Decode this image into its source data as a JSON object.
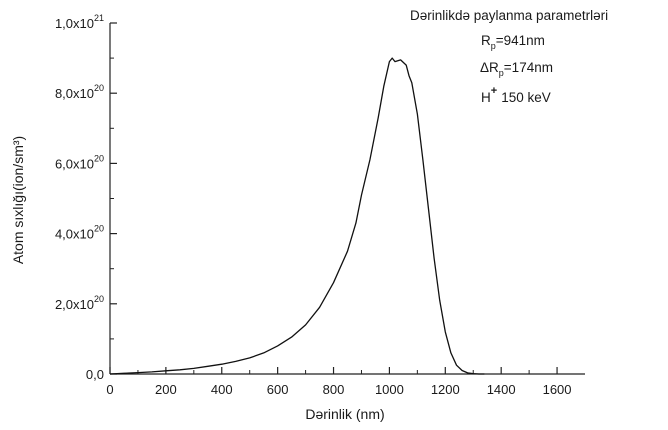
{
  "chart_data": {
    "type": "line",
    "title": "",
    "xlabel": "Dərinlik (nm)",
    "ylabel": "Atom sıxlığı(ion/sm³)",
    "xlim": [
      0,
      1700
    ],
    "ylim": [
      0,
      1e+21
    ],
    "grid": false,
    "x_ticks": [
      {
        "value": 0,
        "label": "0"
      },
      {
        "value": 200,
        "label": "200"
      },
      {
        "value": 400,
        "label": "400"
      },
      {
        "value": 600,
        "label": "600"
      },
      {
        "value": 800,
        "label": "800"
      },
      {
        "value": 1000,
        "label": "1000"
      },
      {
        "value": 1200,
        "label": "1200"
      },
      {
        "value": 1400,
        "label": "1400"
      },
      {
        "value": 1600,
        "label": "1600"
      }
    ],
    "y_ticks": [
      {
        "value": 0,
        "base": "0,0",
        "exp": ""
      },
      {
        "value": 2e+20,
        "base": "2,0x10",
        "exp": "20"
      },
      {
        "value": 4e+20,
        "base": "4,0x10",
        "exp": "20"
      },
      {
        "value": 6e+20,
        "base": "6,0x10",
        "exp": "20"
      },
      {
        "value": 8e+20,
        "base": "8,0x10",
        "exp": "20"
      },
      {
        "value": 1e+21,
        "base": "1,0x10",
        "exp": "21"
      }
    ],
    "series": [
      {
        "x": [
          0,
          50,
          100,
          150,
          200,
          250,
          300,
          350,
          400,
          450,
          500,
          550,
          600,
          650,
          700,
          750,
          800,
          850,
          880,
          900,
          930,
          960,
          980,
          1000,
          1010,
          1020,
          1040,
          1060,
          1070,
          1080,
          1100,
          1120,
          1140,
          1160,
          1180,
          1200,
          1220,
          1240,
          1260,
          1280,
          1300,
          1320,
          1340
        ],
        "y": [
          0,
          2e+18,
          4e+18,
          6e+18,
          9e+18,
          1.2e+19,
          1.6e+19,
          2.2e+19,
          2.8e+19,
          3.6e+19,
          4.6e+19,
          6e+19,
          8e+19,
          1.05e+20,
          1.4e+20,
          1.9e+20,
          2.6e+20,
          3.5e+20,
          4.3e+20,
          5.1e+20,
          6.1e+20,
          7.3e+20,
          8.2e+20,
          8.9e+20,
          9e+20,
          8.9e+20,
          8.95e+20,
          8.8e+20,
          8.5e+20,
          8.3e+20,
          7.4e+20,
          6.1e+20,
          4.7e+20,
          3.3e+20,
          2.1e+20,
          1.2e+20,
          6e+19,
          2.5e+19,
          1e+19,
          3e+18,
          1e+18,
          0,
          0
        ]
      }
    ],
    "annotation": {
      "title": "Dərinlikdə paylanma parametrləri",
      "rp_label": "R",
      "rp_sub": "p",
      "rp_value": "=941nm",
      "drp_label": "ΔR",
      "drp_sub": "p",
      "drp_value": "=174nm",
      "ion_label": "H",
      "ion_sup": "+",
      "ion_energy": "150 keV"
    }
  }
}
